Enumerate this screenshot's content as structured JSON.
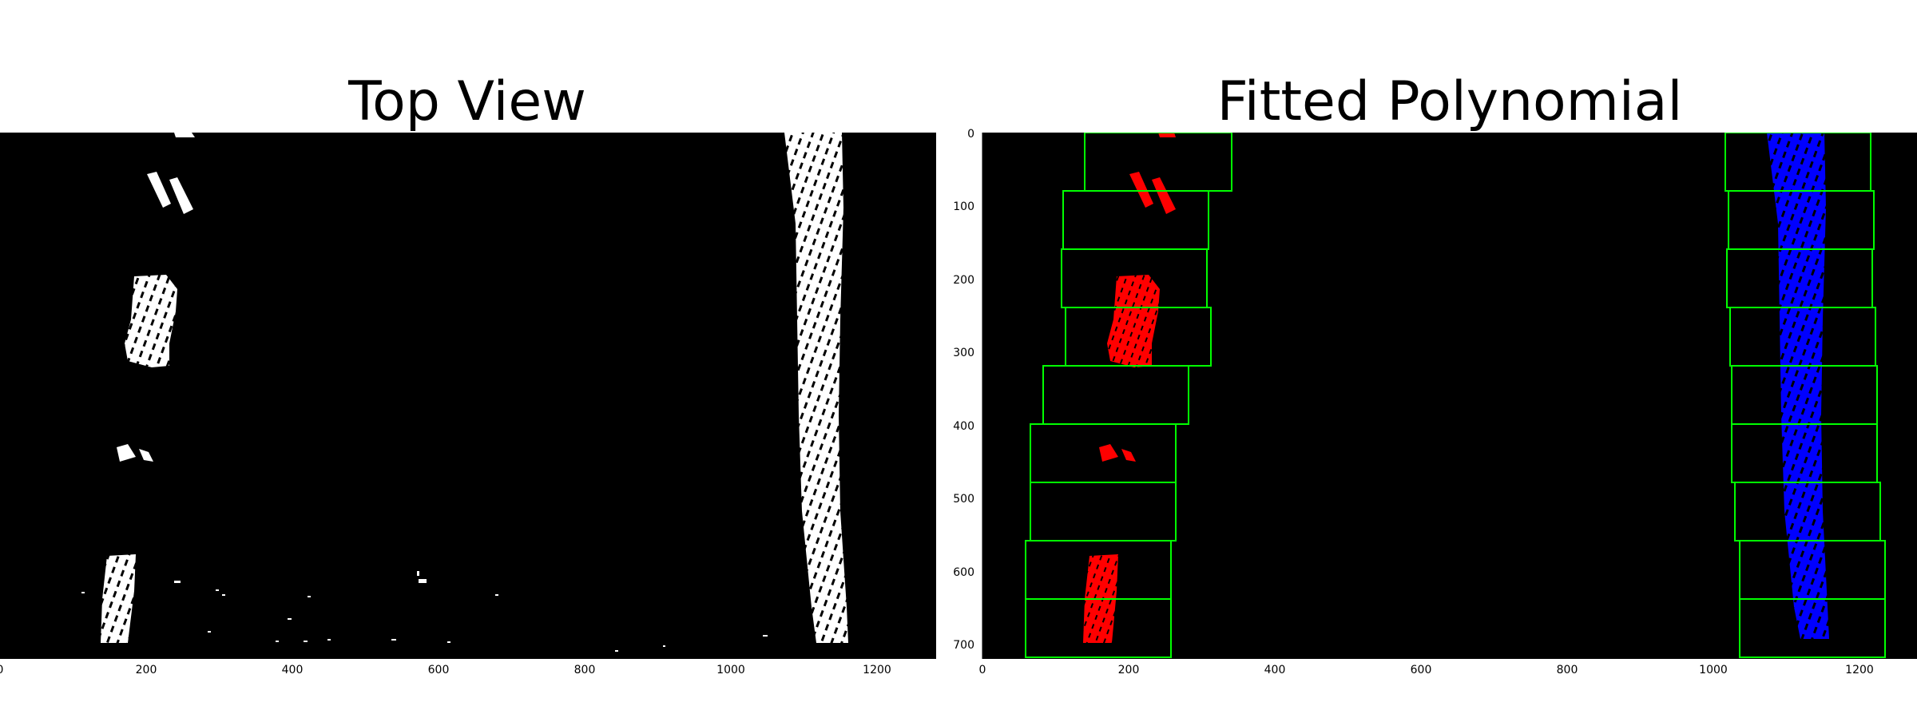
{
  "panels": [
    {
      "title": "Top View"
    },
    {
      "title": "Fitted Polynomial"
    }
  ],
  "colors": {
    "background": "#000000",
    "lane_pixels": "#ffffff",
    "left_lane": "#ff0000",
    "right_lane": "#0000ff",
    "search_windows": "#00ff00"
  },
  "axes": {
    "x_ticks": [
      "0",
      "200",
      "400",
      "600",
      "800",
      "1000",
      "1200"
    ],
    "y_ticks": [
      "0",
      "100",
      "200",
      "300",
      "400",
      "500",
      "600",
      "700"
    ]
  }
}
